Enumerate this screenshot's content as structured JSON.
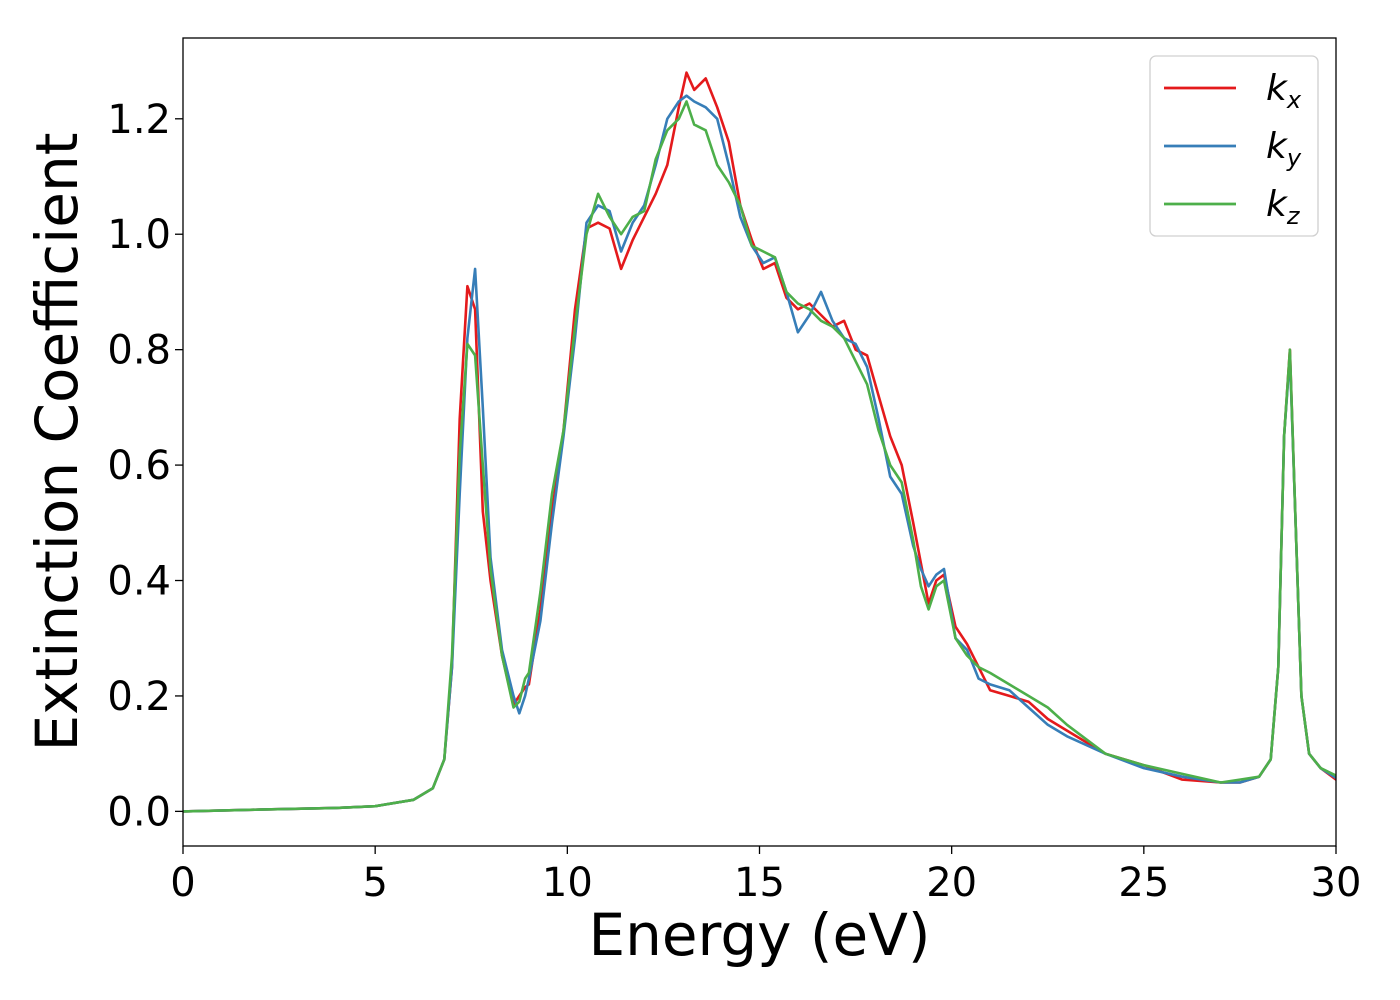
{
  "chart_data": {
    "type": "line",
    "title": "",
    "xlabel": "Energy (eV)",
    "ylabel": "Extinction Coefficient",
    "xlim": [
      0,
      30
    ],
    "ylim": [
      -0.06,
      1.34
    ],
    "xticks": [
      0,
      5,
      10,
      15,
      20,
      25,
      30
    ],
    "xtick_labels": [
      "0",
      "5",
      "10",
      "15",
      "20",
      "25",
      "30"
    ],
    "yticks": [
      0.0,
      0.2,
      0.4,
      0.6,
      0.8,
      1.0,
      1.2
    ],
    "ytick_labels": [
      "0.0",
      "0.2",
      "0.4",
      "0.6",
      "0.8",
      "1.0",
      "1.2"
    ],
    "grid": false,
    "legend_position": "top-right",
    "series": [
      {
        "name": "k_x",
        "label_base": "k",
        "label_sub": "x",
        "color": "#e41a1c",
        "x": [
          0,
          2,
          4,
          5,
          6,
          6.5,
          6.8,
          7.0,
          7.2,
          7.4,
          7.6,
          7.8,
          8.0,
          8.3,
          8.6,
          8.75,
          8.9,
          9.0,
          9.3,
          9.6,
          9.9,
          10.2,
          10.5,
          10.8,
          11.1,
          11.4,
          11.7,
          12.0,
          12.3,
          12.6,
          12.9,
          13.1,
          13.3,
          13.6,
          13.9,
          14.2,
          14.5,
          14.8,
          15.1,
          15.4,
          15.7,
          16.0,
          16.3,
          16.6,
          16.9,
          17.2,
          17.5,
          17.8,
          18.1,
          18.4,
          18.7,
          19.0,
          19.2,
          19.4,
          19.6,
          19.8,
          20.1,
          20.4,
          20.7,
          21.0,
          21.5,
          22.0,
          22.5,
          23.0,
          24.0,
          25.0,
          26.0,
          27.0,
          27.5,
          28.0,
          28.3,
          28.5,
          28.65,
          28.8,
          28.95,
          29.1,
          29.3,
          29.6,
          30.0
        ],
        "y": [
          0.0,
          0.003,
          0.006,
          0.009,
          0.02,
          0.04,
          0.09,
          0.25,
          0.68,
          0.91,
          0.87,
          0.52,
          0.4,
          0.27,
          0.185,
          0.2,
          0.215,
          0.22,
          0.35,
          0.52,
          0.66,
          0.87,
          1.01,
          1.02,
          1.01,
          0.94,
          0.99,
          1.03,
          1.07,
          1.12,
          1.22,
          1.28,
          1.25,
          1.27,
          1.22,
          1.16,
          1.05,
          0.99,
          0.94,
          0.95,
          0.89,
          0.87,
          0.88,
          0.86,
          0.84,
          0.85,
          0.8,
          0.79,
          0.72,
          0.65,
          0.6,
          0.5,
          0.43,
          0.36,
          0.4,
          0.41,
          0.32,
          0.29,
          0.25,
          0.21,
          0.2,
          0.19,
          0.16,
          0.14,
          0.1,
          0.08,
          0.055,
          0.05,
          0.05,
          0.06,
          0.09,
          0.25,
          0.65,
          0.8,
          0.5,
          0.2,
          0.1,
          0.075,
          0.055
        ]
      },
      {
        "name": "k_y",
        "label_base": "k",
        "label_sub": "y",
        "color": "#377eb8",
        "x": [
          0,
          2,
          4,
          5,
          6,
          6.5,
          6.8,
          7.0,
          7.2,
          7.4,
          7.6,
          7.8,
          8.0,
          8.3,
          8.6,
          8.75,
          8.9,
          9.0,
          9.3,
          9.6,
          9.9,
          10.2,
          10.5,
          10.8,
          11.1,
          11.4,
          11.7,
          12.0,
          12.3,
          12.6,
          12.9,
          13.1,
          13.3,
          13.6,
          13.9,
          14.2,
          14.5,
          14.8,
          15.1,
          15.4,
          15.7,
          16.0,
          16.3,
          16.6,
          16.9,
          17.2,
          17.5,
          17.8,
          18.1,
          18.4,
          18.7,
          19.0,
          19.2,
          19.4,
          19.6,
          19.8,
          20.1,
          20.4,
          20.7,
          21.0,
          21.5,
          22.0,
          22.5,
          23.0,
          24.0,
          25.0,
          26.0,
          27.0,
          27.5,
          28.0,
          28.3,
          28.5,
          28.65,
          28.8,
          28.95,
          29.1,
          29.3,
          29.6,
          30.0
        ],
        "y": [
          0.0,
          0.003,
          0.006,
          0.009,
          0.02,
          0.04,
          0.09,
          0.25,
          0.55,
          0.82,
          0.94,
          0.7,
          0.44,
          0.28,
          0.2,
          0.17,
          0.2,
          0.23,
          0.33,
          0.5,
          0.65,
          0.82,
          1.02,
          1.05,
          1.04,
          0.97,
          1.02,
          1.05,
          1.12,
          1.2,
          1.23,
          1.24,
          1.23,
          1.22,
          1.2,
          1.12,
          1.03,
          0.98,
          0.95,
          0.96,
          0.9,
          0.83,
          0.86,
          0.9,
          0.85,
          0.82,
          0.81,
          0.77,
          0.68,
          0.58,
          0.55,
          0.46,
          0.42,
          0.39,
          0.41,
          0.42,
          0.3,
          0.28,
          0.23,
          0.22,
          0.21,
          0.18,
          0.15,
          0.13,
          0.1,
          0.075,
          0.06,
          0.05,
          0.05,
          0.06,
          0.09,
          0.25,
          0.65,
          0.79,
          0.5,
          0.2,
          0.1,
          0.075,
          0.058
        ]
      },
      {
        "name": "k_z",
        "label_base": "k",
        "label_sub": "z",
        "color": "#4daf4a",
        "x": [
          0,
          2,
          4,
          5,
          6,
          6.5,
          6.8,
          7.0,
          7.2,
          7.4,
          7.6,
          7.8,
          8.0,
          8.3,
          8.6,
          8.75,
          8.9,
          9.0,
          9.3,
          9.6,
          9.9,
          10.2,
          10.5,
          10.8,
          11.1,
          11.4,
          11.7,
          12.0,
          12.3,
          12.6,
          12.9,
          13.1,
          13.3,
          13.6,
          13.9,
          14.2,
          14.5,
          14.8,
          15.1,
          15.4,
          15.7,
          16.0,
          16.3,
          16.6,
          16.9,
          17.2,
          17.5,
          17.8,
          18.1,
          18.4,
          18.7,
          19.0,
          19.2,
          19.4,
          19.6,
          19.8,
          20.1,
          20.4,
          20.7,
          21.0,
          21.5,
          22.0,
          22.5,
          23.0,
          24.0,
          25.0,
          26.0,
          27.0,
          27.5,
          28.0,
          28.3,
          28.5,
          28.65,
          28.8,
          28.95,
          29.1,
          29.3,
          29.6,
          30.0
        ],
        "y": [
          0.0,
          0.003,
          0.006,
          0.009,
          0.02,
          0.04,
          0.09,
          0.27,
          0.62,
          0.81,
          0.79,
          0.6,
          0.42,
          0.27,
          0.18,
          0.19,
          0.23,
          0.24,
          0.38,
          0.55,
          0.66,
          0.84,
          1.0,
          1.07,
          1.03,
          1.0,
          1.03,
          1.04,
          1.13,
          1.18,
          1.2,
          1.23,
          1.19,
          1.18,
          1.12,
          1.09,
          1.05,
          0.98,
          0.97,
          0.96,
          0.9,
          0.88,
          0.87,
          0.85,
          0.84,
          0.82,
          0.78,
          0.74,
          0.66,
          0.6,
          0.57,
          0.47,
          0.39,
          0.35,
          0.39,
          0.4,
          0.3,
          0.27,
          0.25,
          0.24,
          0.22,
          0.2,
          0.18,
          0.15,
          0.1,
          0.08,
          0.065,
          0.05,
          0.055,
          0.06,
          0.09,
          0.25,
          0.65,
          0.8,
          0.5,
          0.2,
          0.1,
          0.075,
          0.062
        ]
      }
    ]
  }
}
